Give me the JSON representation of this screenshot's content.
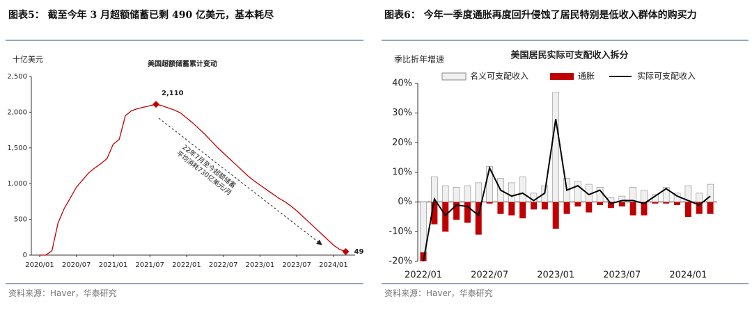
{
  "chart_data": [
    {
      "type": "line",
      "figure_title": "图表5：  截至今年 3 月超额储蓄已剩 490 亿美元，基本耗尽",
      "title": "美国超额储蓄累计变动",
      "y_label": "十亿美元",
      "source": "资料来源：Haver，华泰研究",
      "categories": [
        "2020/01",
        null,
        null,
        null,
        null,
        null,
        "2020/07",
        null,
        null,
        null,
        null,
        null,
        "2021/01",
        null,
        null,
        null,
        null,
        null,
        "2021/07",
        null,
        null,
        null,
        null,
        null,
        "2022/01",
        null,
        null,
        null,
        null,
        null,
        "2022/07",
        null,
        null,
        null,
        null,
        null,
        "2023/01",
        null,
        null,
        null,
        null,
        null,
        "2023/07",
        null,
        null,
        null,
        null,
        null,
        "2024/01",
        null,
        null
      ],
      "values": [
        0,
        0,
        60,
        450,
        650,
        800,
        950,
        1050,
        1150,
        1220,
        1280,
        1350,
        1550,
        1620,
        1950,
        2020,
        2050,
        2070,
        2090,
        2110,
        2090,
        2060,
        2030,
        1990,
        1920,
        1850,
        1770,
        1690,
        1600,
        1510,
        1430,
        1350,
        1270,
        1190,
        1110,
        1040,
        980,
        920,
        860,
        800,
        750,
        690,
        620,
        540,
        460,
        380,
        300,
        220,
        140,
        80,
        49
      ],
      "value_labels": [
        null,
        null,
        null,
        null,
        null,
        null,
        null,
        null,
        null,
        null,
        null,
        null,
        null,
        null,
        null,
        null,
        null,
        null,
        null,
        "2,110",
        null,
        null,
        null,
        null,
        null,
        null,
        null,
        null,
        null,
        null,
        null,
        null,
        null,
        null,
        null,
        null,
        null,
        null,
        null,
        null,
        null,
        null,
        null,
        null,
        null,
        null,
        null,
        null,
        null,
        null,
        "49"
      ],
      "annotation": [
        "22年7月至今超额储蓄",
        "平均消耗730亿美元/月"
      ],
      "color": "#c00000",
      "ylim": [
        0,
        2500
      ],
      "yticks": [
        0,
        500,
        {
          "value": 1000,
          "label": "1,000"
        },
        {
          "value": 1500,
          "label": "1,500"
        },
        {
          "value": 2000,
          "label": "2,000"
        },
        {
          "value": 2500,
          "label": "2,500"
        }
      ]
    },
    {
      "type": "combo",
      "figure_title": "图表6：  今年一季度通胀再度回升侵蚀了居民特别是低收入群体的购买力",
      "title": "美国居民实际可支配收入拆分",
      "y_label": "季比折年增速",
      "source": "资料来源：Haver，华泰研究",
      "legend": "top",
      "categories": [
        "2022/01",
        null,
        null,
        null,
        null,
        null,
        "2022/07",
        null,
        null,
        null,
        null,
        null,
        "2023/01",
        null,
        null,
        null,
        null,
        null,
        "2023/07",
        null,
        null,
        null,
        null,
        null,
        "2024/01",
        null,
        null
      ],
      "series": [
        {
          "name": "名义可支配收入",
          "kind": "bar",
          "color": "#f0f0f0",
          "values": [
            -17,
            8.5,
            5.5,
            5,
            5.5,
            6.5,
            12,
            8,
            6.5,
            8.5,
            3,
            5.5,
            37,
            8,
            7,
            6,
            5,
            1.5,
            2,
            5,
            4,
            2.5,
            5,
            3,
            5.5,
            3,
            6
          ]
        },
        {
          "name": "通胀",
          "kind": "bar",
          "color": "#c00000",
          "values": [
            -3,
            -7.5,
            -10,
            -6,
            -7,
            -11,
            -0.5,
            -4,
            -4.5,
            -5.5,
            -2.5,
            -2.5,
            -9,
            -4,
            -1.5,
            -3.5,
            -1,
            -2,
            -1.5,
            -4.5,
            -4.5,
            -0.5,
            -0.5,
            -1,
            -5,
            -4,
            -4
          ]
        },
        {
          "name": "实际可支配收入",
          "kind": "line",
          "color": "#000000",
          "values": [
            -20,
            1,
            -4.5,
            -1,
            -1.5,
            -4.5,
            11.5,
            4,
            2,
            3,
            0.5,
            3,
            28,
            4,
            5.5,
            2.5,
            4,
            -0.5,
            0.5,
            0.5,
            -0.5,
            2,
            4.5,
            2,
            0.5,
            -1,
            2
          ]
        }
      ],
      "ylim": [
        -20,
        40
      ],
      "yticks": [
        {
          "value": -20,
          "label": "-20%"
        },
        {
          "value": -10,
          "label": "-10%"
        },
        {
          "value": 0,
          "label": "0%"
        },
        {
          "value": 10,
          "label": "10%"
        },
        {
          "value": 20,
          "label": "20%"
        },
        {
          "value": 30,
          "label": "30%"
        },
        {
          "value": 40,
          "label": "40%"
        }
      ]
    }
  ]
}
